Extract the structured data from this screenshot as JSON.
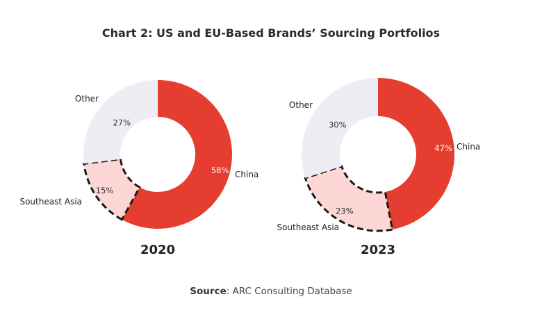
{
  "chart_data": [
    {
      "type": "pie",
      "title": "2020",
      "categories": [
        "China",
        "Southeast Asia",
        "Other"
      ],
      "values": [
        58,
        15,
        27
      ],
      "value_labels": [
        "58%",
        "15%",
        "27%"
      ],
      "colors": [
        "#E53E30",
        "#FDD6D6",
        "#EEEDF3"
      ],
      "highlighted": "Southeast Asia"
    },
    {
      "type": "pie",
      "title": "2023",
      "categories": [
        "China",
        "Southeast Asia",
        "Other"
      ],
      "values": [
        47,
        23,
        30
      ],
      "value_labels": [
        "47%",
        "23%",
        "30%"
      ],
      "colors": [
        "#E53E30",
        "#FDD6D6",
        "#EEEDF3"
      ],
      "highlighted": "Southeast Asia"
    }
  ],
  "title": "Chart 2: US and EU-Based Brands’ Sourcing Portfolios",
  "source": {
    "label": "Source",
    "text": ": ARC Consulting Database"
  }
}
